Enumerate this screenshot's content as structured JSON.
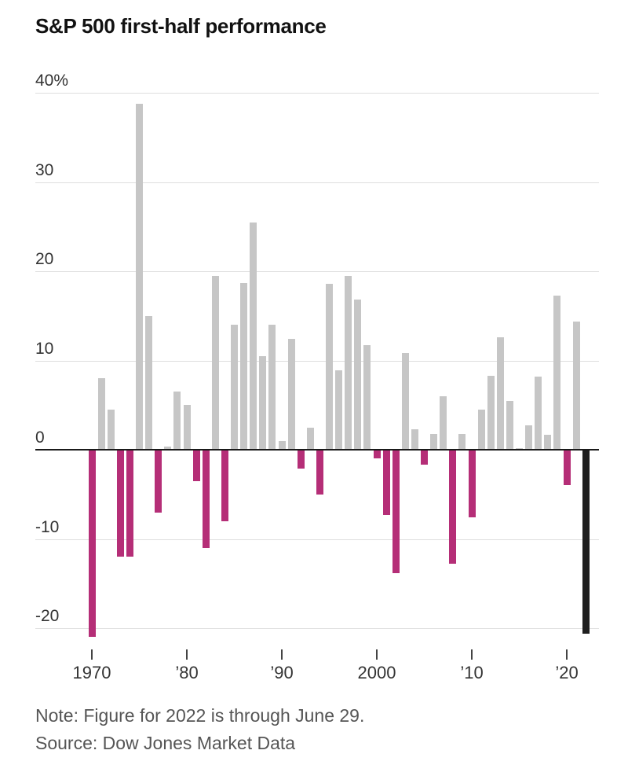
{
  "title": "S&P 500 first-half performance",
  "note": "Note: Figure for 2022 is through June 29.",
  "source": "Source: Dow Jones Market Data",
  "chart_data": {
    "type": "bar",
    "title": "S&P 500 first-half performance",
    "unit": "percent",
    "years": [
      1970,
      1971,
      1972,
      1973,
      1974,
      1975,
      1976,
      1977,
      1978,
      1979,
      1980,
      1981,
      1982,
      1983,
      1984,
      1985,
      1986,
      1987,
      1988,
      1989,
      1990,
      1991,
      1992,
      1993,
      1994,
      1995,
      1996,
      1997,
      1998,
      1999,
      2000,
      2001,
      2002,
      2003,
      2004,
      2005,
      2006,
      2007,
      2008,
      2009,
      2010,
      2011,
      2012,
      2013,
      2014,
      2015,
      2016,
      2017,
      2018,
      2019,
      2020,
      2021,
      2022
    ],
    "values": [
      -21,
      8,
      4.5,
      -12,
      -12,
      38.8,
      15,
      -7,
      0.4,
      6.5,
      5,
      -3.5,
      -11,
      19.5,
      -8,
      14,
      18.7,
      25.5,
      10.5,
      14,
      1,
      12.4,
      -2.1,
      2.5,
      -5,
      18.6,
      8.9,
      19.5,
      16.8,
      11.7,
      -1,
      -7.3,
      -13.8,
      10.8,
      2.3,
      -1.7,
      1.8,
      6,
      -12.8,
      1.8,
      -7.6,
      4.5,
      8.3,
      12.6,
      5.5,
      0.2,
      2.7,
      8.2,
      1.7,
      17.3,
      -4,
      14.4,
      -20.6
    ],
    "highlight_year": 2022,
    "colors": {
      "positive": "#c6c6c6",
      "negative": "#b52e77",
      "highlight": "#1f1f1f",
      "zero_line": "#1a1a1a",
      "gridline": "#dedede"
    },
    "y_axis": {
      "range": [
        -22,
        40
      ],
      "ticks": [
        {
          "value": 40,
          "label": "40%"
        },
        {
          "value": 30,
          "label": "30"
        },
        {
          "value": 20,
          "label": "20"
        },
        {
          "value": 10,
          "label": "10"
        },
        {
          "value": 0,
          "label": "0"
        },
        {
          "value": -10,
          "label": "-10"
        },
        {
          "value": -20,
          "label": "-20"
        }
      ]
    },
    "x_axis": {
      "ticks": [
        {
          "year": 1970,
          "label": "1970"
        },
        {
          "year": 1980,
          "label": "’80"
        },
        {
          "year": 1990,
          "label": "’90"
        },
        {
          "year": 2000,
          "label": "2000"
        },
        {
          "year": 2010,
          "label": "’10"
        },
        {
          "year": 2020,
          "label": "’20"
        }
      ]
    },
    "grid": true,
    "legend": "none"
  }
}
